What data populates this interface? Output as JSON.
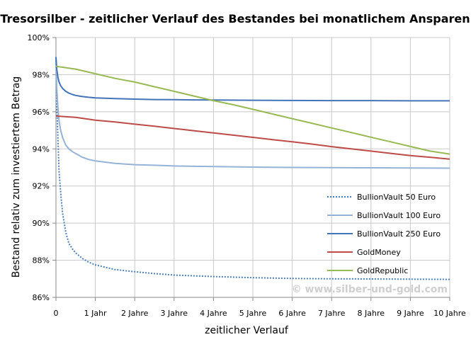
{
  "chart_data": {
    "type": "line",
    "title": "Tresorsilber - zeitlicher Verlauf des Bestandes bei monatlichem Ansparen",
    "xlabel": "zeitlicher Verlauf",
    "ylabel": "Bestand relativ zum investiertem Betrag",
    "watermark": "© www.silber-und-gold.com",
    "xlim": [
      0,
      10
    ],
    "ylim": [
      86,
      100
    ],
    "x_ticks": [
      {
        "value": 0,
        "label": "0"
      },
      {
        "value": 1,
        "label": "1 Jahr"
      },
      {
        "value": 2,
        "label": "2 Jahre"
      },
      {
        "value": 3,
        "label": "3 Jahre"
      },
      {
        "value": 4,
        "label": "4 Jahre"
      },
      {
        "value": 5,
        "label": "5 Jahre"
      },
      {
        "value": 6,
        "label": "6 Jahre"
      },
      {
        "value": 7,
        "label": "7 Jahre"
      },
      {
        "value": 8,
        "label": "8 Jahre"
      },
      {
        "value": 9,
        "label": "9 Jahre"
      },
      {
        "value": 10,
        "label": "10 Jahre"
      }
    ],
    "y_ticks": [
      {
        "value": 86,
        "label": "86%"
      },
      {
        "value": 88,
        "label": "88%"
      },
      {
        "value": 90,
        "label": "90%"
      },
      {
        "value": 92,
        "label": "92%"
      },
      {
        "value": 94,
        "label": "94%"
      },
      {
        "value": 96,
        "label": "96%"
      },
      {
        "value": 98,
        "label": "98%"
      },
      {
        "value": 100,
        "label": "100%"
      }
    ],
    "grid": {
      "x": true,
      "y": true
    },
    "legend_position": "bottom-right",
    "series": [
      {
        "name": "BullionVault 50 Euro",
        "color": "#4a7ebb",
        "dash": "dotted",
        "x": [
          0,
          0.02,
          0.05,
          0.08,
          0.12,
          0.17,
          0.25,
          0.33,
          0.42,
          0.5,
          0.67,
          0.83,
          1,
          1.5,
          2,
          2.5,
          3,
          3.5,
          4,
          5,
          6,
          7,
          8,
          9,
          10
        ],
        "y": [
          98.9,
          96.5,
          94.5,
          92.8,
          91.6,
          90.5,
          89.5,
          88.9,
          88.6,
          88.4,
          88.1,
          87.9,
          87.75,
          87.5,
          87.38,
          87.28,
          87.2,
          87.16,
          87.12,
          87.06,
          87.02,
          87.0,
          86.99,
          86.98,
          86.97
        ]
      },
      {
        "name": "BullionVault 100 Euro",
        "color": "#95b3d7",
        "dash": "solid",
        "x": [
          0,
          0.02,
          0.05,
          0.08,
          0.12,
          0.17,
          0.25,
          0.33,
          0.42,
          0.5,
          0.67,
          0.83,
          1,
          1.5,
          2,
          2.5,
          3,
          3.5,
          4,
          5,
          6,
          7,
          8,
          9,
          10
        ],
        "y": [
          98.9,
          97.3,
          96.2,
          95.5,
          95.0,
          94.6,
          94.2,
          94.0,
          93.85,
          93.75,
          93.55,
          93.43,
          93.35,
          93.22,
          93.15,
          93.12,
          93.08,
          93.06,
          93.05,
          93.02,
          93.0,
          92.99,
          92.98,
          92.97,
          92.96
        ]
      },
      {
        "name": "BullionVault 250 Euro",
        "color": "#4473b8",
        "dash": "solid",
        "x": [
          0,
          0.02,
          0.05,
          0.08,
          0.12,
          0.17,
          0.25,
          0.33,
          0.42,
          0.5,
          0.67,
          0.83,
          1,
          1.5,
          2,
          2.5,
          3,
          3.5,
          4,
          5,
          6,
          7,
          8,
          9,
          10
        ],
        "y": [
          98.95,
          98.3,
          97.85,
          97.6,
          97.4,
          97.25,
          97.1,
          97.0,
          96.93,
          96.88,
          96.82,
          96.78,
          96.75,
          96.71,
          96.68,
          96.66,
          96.65,
          96.64,
          96.63,
          96.62,
          96.61,
          96.6,
          96.6,
          96.59,
          96.59
        ]
      },
      {
        "name": "GoldMoney",
        "color": "#be4b48",
        "dash": "solid",
        "x": [
          0,
          0.5,
          1,
          1.5,
          2,
          2.5,
          3,
          3.5,
          4,
          4.5,
          5,
          5.5,
          6,
          6.5,
          7,
          7.5,
          8,
          8.5,
          9,
          9.5,
          10
        ],
        "y": [
          95.77,
          95.7,
          95.55,
          95.45,
          95.33,
          95.22,
          95.1,
          94.98,
          94.86,
          94.74,
          94.62,
          94.5,
          94.38,
          94.26,
          94.12,
          94.0,
          93.88,
          93.76,
          93.64,
          93.55,
          93.45
        ]
      },
      {
        "name": "GoldRepublic",
        "color": "#98b954",
        "dash": "solid",
        "x": [
          0,
          0.5,
          1,
          1.5,
          2,
          2.5,
          3,
          3.5,
          4,
          4.5,
          5,
          5.5,
          6,
          6.5,
          7,
          7.5,
          8,
          8.5,
          9,
          9.5,
          10
        ],
        "y": [
          98.45,
          98.3,
          98.05,
          97.8,
          97.6,
          97.35,
          97.1,
          96.85,
          96.6,
          96.38,
          96.13,
          95.88,
          95.63,
          95.38,
          95.13,
          94.88,
          94.63,
          94.38,
          94.13,
          93.88,
          93.72
        ]
      }
    ]
  }
}
